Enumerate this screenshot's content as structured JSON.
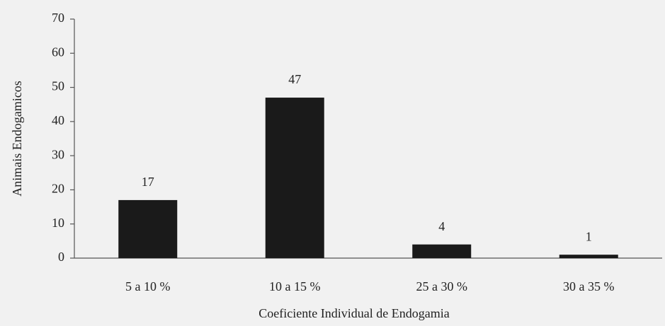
{
  "chart_data": {
    "type": "bar",
    "categories": [
      "5 a 10 %",
      "10 a 15 %",
      "25 a 30 %",
      "30 a 35 %"
    ],
    "values": [
      17,
      47,
      4,
      1
    ],
    "color": "#1a1a1a",
    "ylim": [
      0,
      70
    ],
    "yticks": [
      0,
      10,
      20,
      30,
      40,
      50,
      60,
      70
    ],
    "y_label": "Animais Endogamicos",
    "x_label": "Coeficiente Individual de Endogamia",
    "grid": false
  }
}
